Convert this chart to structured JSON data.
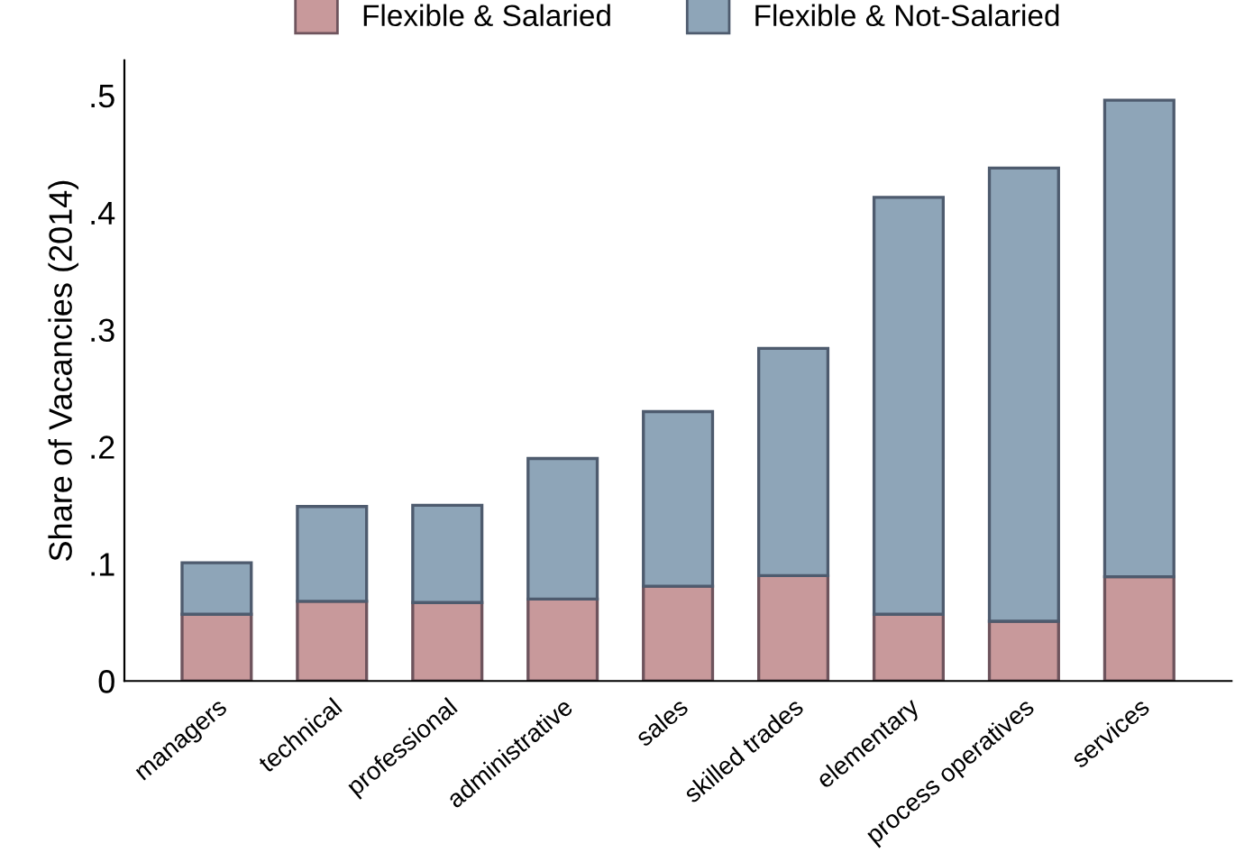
{
  "chart_data": {
    "type": "bar",
    "stacked": true,
    "ylabel": "Share of Vacancies (2014)",
    "categories": [
      "managers",
      "technical",
      "professional",
      "administrative",
      "sales",
      "skilled trades",
      "elementary",
      "process operatives",
      "services"
    ],
    "series": [
      {
        "name": "Flexible & Salaried",
        "color": "#c8999b",
        "values": [
          0.057,
          0.068,
          0.067,
          0.07,
          0.081,
          0.09,
          0.057,
          0.051,
          0.089
        ]
      },
      {
        "name": "Flexible & Not-Salaried",
        "color": "#8ea5b8",
        "values": [
          0.044,
          0.081,
          0.083,
          0.12,
          0.149,
          0.194,
          0.356,
          0.387,
          0.407
        ]
      }
    ],
    "ylim": [
      0,
      0.53
    ],
    "yticks": [
      {
        "value": 0,
        "label": "0"
      },
      {
        "value": 0.1,
        "label": ".1"
      },
      {
        "value": 0.2,
        "label": ".2"
      },
      {
        "value": 0.3,
        "label": ".3"
      },
      {
        "value": 0.4,
        "label": ".4"
      },
      {
        "value": 0.5,
        "label": ".5"
      }
    ],
    "grid": false,
    "legend": "top"
  }
}
